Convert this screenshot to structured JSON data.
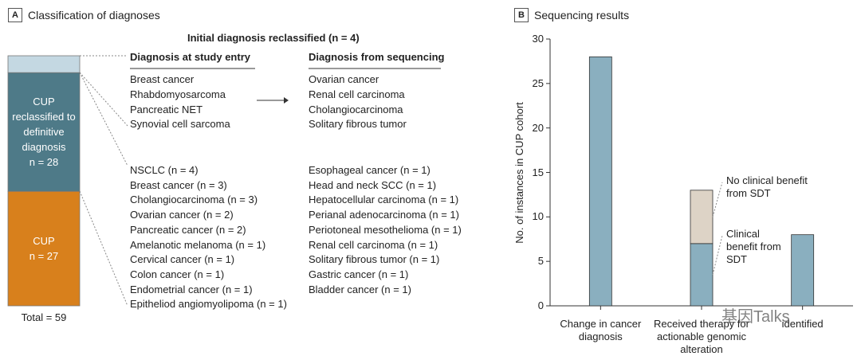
{
  "chart_data": [
    {
      "type": "stacked-bar",
      "panel": "A",
      "title": "Classification of diagnoses",
      "series": [
        {
          "color": "#c4d8e2",
          "values": [
            4
          ]
        },
        {
          "name": "CUP reclassified to definitive diagnosis",
          "color": "#4e7a88",
          "values": [
            28
          ],
          "value_labels": [
            "n = 28"
          ]
        },
        {
          "name": "CUP",
          "color": "#d8801c",
          "values": [
            27
          ],
          "value_labels": [
            "n = 27"
          ]
        }
      ],
      "total": 59,
      "total_label": "Total = 59",
      "reclassified": {
        "title": "Initial diagnosis reclassified (n = 4)",
        "entry_header": "Diagnosis at study entry",
        "sequencing_header": "Diagnosis from sequencing",
        "entry": [
          "Breast cancer",
          "Rhabdomyosarcoma",
          "Pancreatic NET",
          "Synovial cell sarcoma"
        ],
        "sequencing": [
          "Ovarian cancer",
          "Renal cell carcinoma",
          "Cholangiocarcinoma",
          "Solitary fibrous tumor"
        ]
      },
      "other": {
        "entry": [
          "NSCLC (n = 4)",
          "Breast cancer (n = 3)",
          "Cholangiocarcinoma (n = 3)",
          "Ovarian cancer (n = 2)",
          "Pancreatic cancer (n = 2)",
          "Amelanotic melanoma (n = 1)",
          "Cervical cancer (n = 1)",
          "Colon cancer (n = 1)",
          "Endometrial cancer (n = 1)",
          "Epitheliod angiomyolipoma (n = 1)"
        ],
        "sequencing": [
          "Esophageal cancer (n = 1)",
          "Head and neck SCC (n = 1)",
          "Hepatocellular carcinoma (n = 1)",
          "Perianal adenocarcinoma (n = 1)",
          "Periotoneal mesothelioma (n = 1)",
          "Renal cell carcinoma (n = 1)",
          "Solitary fibrous tumor (n = 1)",
          "Gastric cancer (n = 1)",
          "Bladder cancer (n = 1)"
        ]
      }
    },
    {
      "type": "bar",
      "panel": "B",
      "title": "Sequencing results",
      "y_label": "No. of instances in CUP cohort",
      "categories": [
        "Change in cancer diagnosis",
        "Received therapy for actionable genomic alteration",
        "identified"
      ],
      "series": [
        {
          "color": "#8aafbf",
          "values": [
            28,
            null,
            8
          ]
        },
        {
          "name": "Clinical benefit from SDT",
          "color": "#8aafbf",
          "values": [
            null,
            7,
            null
          ]
        },
        {
          "name": "No clinical benefit from SDT",
          "color": "#ddd3c6",
          "values": [
            null,
            6,
            null
          ]
        }
      ],
      "ylim": [
        0,
        30
      ],
      "yticks": [
        0,
        5,
        10,
        15,
        20,
        25,
        30
      ]
    }
  ],
  "watermark": "基因Talks"
}
